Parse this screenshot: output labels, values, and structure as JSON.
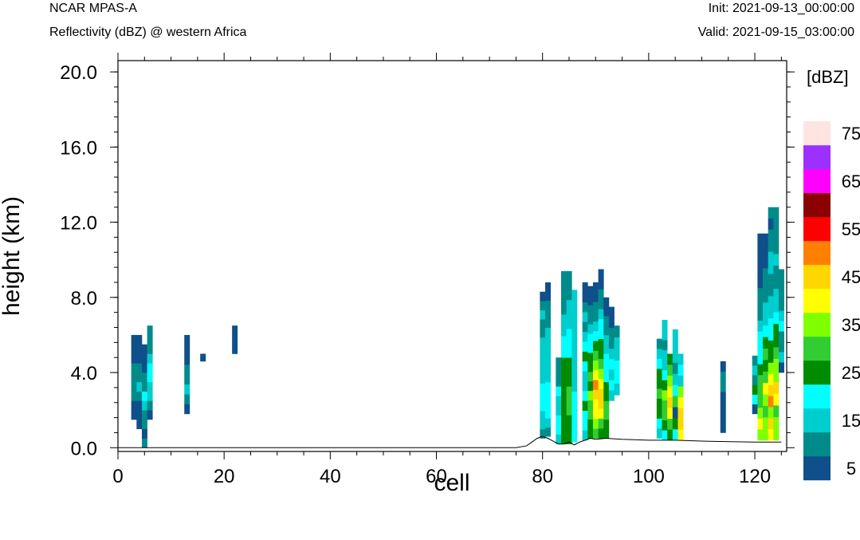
{
  "header": {
    "model": "NCAR MPAS-A",
    "field": "Reflectivity (dBZ) @ western Africa",
    "init": "Init: 2021-09-13_00:00:00",
    "valid": "Valid: 2021-09-15_03:00:00"
  },
  "chart_data": {
    "type": "heatmap",
    "xlabel": "cell",
    "ylabel": "height (km)",
    "xlim": [
      0,
      126
    ],
    "ylim": [
      -0.2,
      20.6
    ],
    "xticks": [
      0,
      20,
      40,
      60,
      80,
      100,
      120
    ],
    "xtick_labels": [
      "0",
      "20",
      "40",
      "60",
      "80",
      "100",
      "120"
    ],
    "yticks": [
      0,
      4,
      8,
      12,
      16,
      20
    ],
    "ytick_labels": [
      "0.0",
      "4.0",
      "8.0",
      "12.0",
      "16.0",
      "20.0"
    ],
    "colorbar": {
      "units": "[dBZ]",
      "levels": [
        5,
        10,
        15,
        20,
        25,
        30,
        35,
        40,
        45,
        50,
        55,
        60,
        65,
        70,
        75
      ],
      "labels": [
        "5",
        "15",
        "25",
        "35",
        "45",
        "55",
        "65",
        "75"
      ],
      "colors": [
        "#0f4f8a",
        "#008b8b",
        "#00cdcd",
        "#00ffff",
        "#008b00",
        "#32cd32",
        "#7fff00",
        "#ffff00",
        "#ffd700",
        "#ff7f00",
        "#ff0000",
        "#8b0000",
        "#ff00ff",
        "#9b30ff",
        "#ffe4e1"
      ]
    },
    "terrain": {
      "x": [
        0,
        75,
        77,
        78,
        79,
        80,
        81,
        82,
        83,
        84,
        85,
        86,
        87,
        88,
        89,
        90,
        92,
        95,
        100,
        105,
        110,
        120,
        125
      ],
      "height": [
        0,
        0,
        0.1,
        0.3,
        0.5,
        0.6,
        0.5,
        0.35,
        0.2,
        0.2,
        0.3,
        0.15,
        0.3,
        0.4,
        0.5,
        0.45,
        0.5,
        0.45,
        0.4,
        0.4,
        0.35,
        0.3,
        0.3
      ]
    },
    "columns": [
      {
        "x": 3,
        "bottom": 1.5,
        "top": 6.0,
        "dbz": [
          5,
          5,
          10,
          10,
          10,
          10,
          5,
          5,
          5
        ]
      },
      {
        "x": 4,
        "bottom": 1.0,
        "top": 6.0,
        "dbz": [
          5,
          5,
          5,
          10,
          15,
          10,
          10,
          5,
          5,
          5
        ]
      },
      {
        "x": 5,
        "bottom": 0.0,
        "top": 5.5,
        "dbz": [
          10,
          5,
          10,
          10,
          15,
          20,
          10,
          10,
          5,
          5,
          5
        ]
      },
      {
        "x": 6,
        "bottom": 1.5,
        "top": 6.5,
        "dbz": [
          5,
          10,
          15,
          15,
          20,
          20,
          15,
          10,
          10,
          10
        ]
      },
      {
        "x": 13,
        "bottom": 1.8,
        "top": 6.0,
        "dbz": [
          5,
          10,
          15,
          10,
          10,
          5,
          5,
          5
        ]
      },
      {
        "x": 16,
        "bottom": 4.6,
        "top": 5.0,
        "dbz": [
          5
        ]
      },
      {
        "x": 22,
        "bottom": 5.0,
        "top": 6.5,
        "dbz": [
          5,
          5,
          5
        ]
      },
      {
        "x": 80,
        "bottom": 0.5,
        "top": 8.3,
        "dbz": [
          10,
          15,
          15,
          20,
          20,
          20,
          15,
          15,
          15,
          15,
          15,
          10,
          10,
          15,
          10,
          5
        ]
      },
      {
        "x": 81,
        "bottom": 0.6,
        "top": 8.8,
        "dbz": [
          10,
          15,
          20,
          20,
          20,
          20,
          15,
          15,
          15,
          15,
          15,
          15,
          10,
          10,
          10,
          5,
          5
        ]
      },
      {
        "x": 83,
        "bottom": 0.2,
        "top": 4.8,
        "dbz": [
          15,
          20,
          20,
          15,
          15,
          20,
          10,
          10,
          10
        ]
      },
      {
        "x": 84,
        "bottom": 0.2,
        "top": 9.4,
        "dbz": [
          25,
          25,
          25,
          25,
          20,
          15,
          10,
          10
        ]
      },
      {
        "x": 85,
        "bottom": 0.2,
        "top": 9.4,
        "dbz": [
          25,
          30,
          25,
          20,
          15,
          10
        ]
      },
      {
        "x": 86,
        "bottom": 0.3,
        "top": 8.4,
        "dbz": [
          20,
          15,
          15
        ]
      },
      {
        "x": 88,
        "bottom": 0.4,
        "top": 8.8,
        "dbz": [
          15,
          20,
          20,
          25,
          20,
          15,
          15,
          20,
          25,
          20,
          15,
          10,
          15,
          10,
          5,
          5
        ]
      },
      {
        "x": 89,
        "bottom": 0.5,
        "top": 8.6,
        "dbz": [
          25,
          25,
          30,
          30,
          35,
          25,
          30,
          25,
          25,
          20,
          20,
          15,
          10,
          10,
          5,
          5
        ]
      },
      {
        "x": 90,
        "bottom": 0.5,
        "top": 8.8,
        "dbz": [
          30,
          35,
          40,
          40,
          45,
          50,
          40,
          35,
          30,
          25,
          20,
          15,
          10,
          10,
          5,
          5
        ]
      },
      {
        "x": 91,
        "bottom": 0.5,
        "top": 9.5,
        "dbz": [
          25,
          30,
          40,
          45,
          45,
          40,
          35,
          30,
          25,
          25,
          20,
          20,
          15,
          10,
          10,
          5,
          5
        ]
      },
      {
        "x": 92,
        "bottom": 0.5,
        "top": 8.0,
        "dbz": [
          25,
          25,
          30,
          30,
          25,
          25,
          20,
          20,
          20,
          15,
          15,
          10,
          10,
          5,
          5
        ]
      },
      {
        "x": 93,
        "bottom": 2.5,
        "top": 7.5,
        "dbz": [
          15,
          20,
          15,
          20,
          15,
          10,
          10,
          5,
          5
        ]
      },
      {
        "x": 94,
        "bottom": 2.8,
        "top": 6.5,
        "dbz": [
          15,
          20,
          20,
          15,
          15,
          10
        ]
      },
      {
        "x": 102,
        "bottom": 0.5,
        "top": 5.8,
        "dbz": [
          15,
          20,
          25,
          25,
          30,
          25,
          25,
          20,
          15,
          10
        ]
      },
      {
        "x": 103,
        "bottom": 0.4,
        "top": 6.8,
        "dbz": [
          20,
          25,
          30,
          30,
          35,
          25,
          20,
          15,
          15,
          10,
          15,
          15
        ]
      },
      {
        "x": 104,
        "bottom": 0.4,
        "top": 5.0,
        "dbz": [
          25,
          30,
          40,
          45,
          40,
          35,
          30,
          25
        ]
      },
      {
        "x": 105,
        "bottom": 0.4,
        "top": 6.3,
        "dbz": [
          20,
          25,
          5,
          30,
          20,
          15,
          10,
          15,
          15,
          15
        ]
      },
      {
        "x": 106,
        "bottom": 0.4,
        "top": 5.0,
        "dbz": [
          40,
          45,
          45,
          40,
          35,
          15,
          20,
          15
        ]
      },
      {
        "x": 114,
        "bottom": 0.8,
        "top": 4.6,
        "dbz": [
          5,
          5,
          5,
          5,
          10,
          10,
          5
        ]
      },
      {
        "x": 120,
        "bottom": 1.8,
        "top": 4.9,
        "dbz": [
          5,
          20,
          25,
          10,
          15,
          10
        ]
      },
      {
        "x": 121,
        "bottom": 0.4,
        "top": 11.4,
        "dbz": [
          35,
          40,
          35,
          30,
          30,
          30,
          25,
          20,
          20,
          20,
          15,
          10,
          10,
          10,
          5,
          5,
          5,
          5,
          5
        ]
      },
      {
        "x": 122,
        "bottom": 0.4,
        "top": 11.4,
        "dbz": [
          35,
          35,
          30,
          35,
          40,
          30,
          25,
          30,
          25,
          20,
          15,
          15,
          10,
          10,
          10,
          5,
          5,
          5
        ]
      },
      {
        "x": 123,
        "bottom": 0.4,
        "top": 12.8,
        "dbz": [
          40,
          45,
          35,
          50,
          45,
          40,
          35,
          25,
          25,
          20,
          20,
          15,
          15,
          10,
          10,
          15,
          15,
          10,
          10,
          5,
          10
        ]
      },
      {
        "x": 124,
        "bottom": 0.4,
        "top": 12.8,
        "dbz": [
          35,
          35,
          30,
          40,
          45,
          35,
          35,
          30,
          25,
          25,
          20,
          15,
          15,
          10,
          10,
          15,
          10,
          10,
          10,
          10
        ]
      },
      {
        "x": 125,
        "bottom": 4.0,
        "top": 9.5,
        "dbz": [
          5,
          15,
          10,
          10,
          20,
          15,
          10,
          10,
          10,
          10
        ]
      }
    ]
  }
}
